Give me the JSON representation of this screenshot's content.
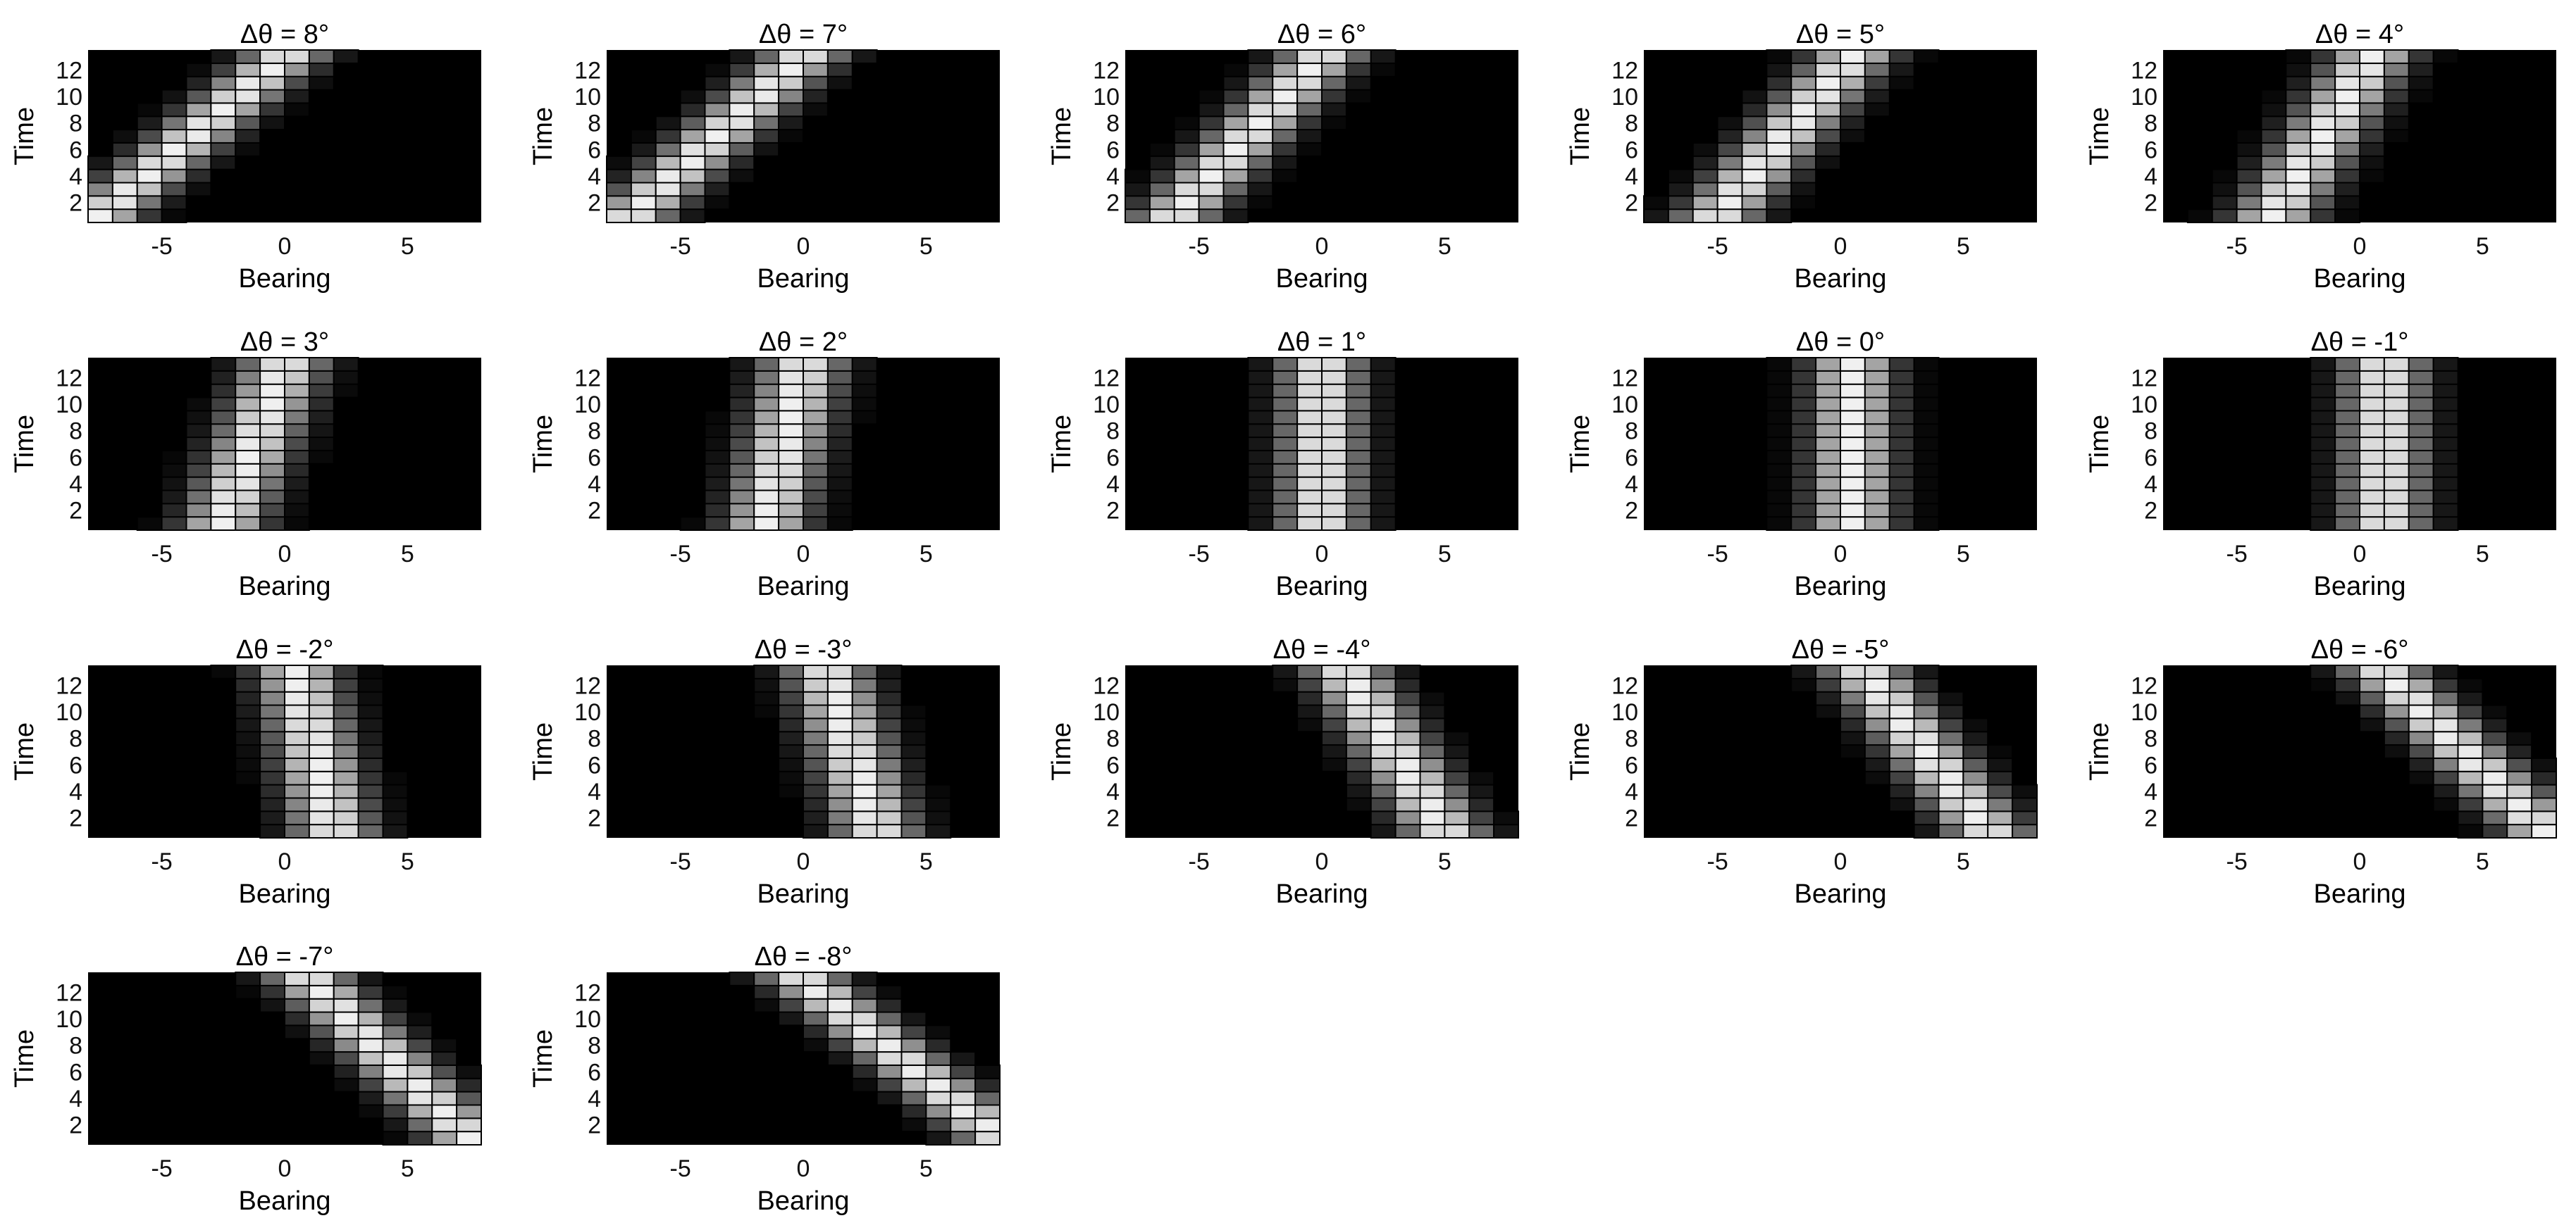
{
  "figure": {
    "background": "#ffffff",
    "colormap": "gray",
    "cell_edge_color": "#000000"
  },
  "chart_data": [
    {
      "type": "heatmap",
      "title": "Δθ = 8°",
      "delta_deg": 8,
      "xlabel": "Bearing",
      "ylabel": "Time",
      "xlim": [
        -8,
        8
      ],
      "ylim": [
        1,
        13
      ],
      "x_ticks": [
        "-5",
        "0",
        "5"
      ],
      "y_ticks": [
        "2",
        "4",
        "6",
        "8",
        "10",
        "12"
      ],
      "time_range": [
        1,
        13
      ],
      "peak_bearing_at_time": [
        [
          1,
          -7.5
        ],
        [
          13,
          0
        ]
      ]
    },
    {
      "type": "heatmap",
      "title": "Δθ = 7°",
      "delta_deg": 7,
      "xlabel": "Bearing",
      "ylabel": "Time",
      "xlim": [
        -8,
        8
      ],
      "ylim": [
        1,
        13
      ],
      "x_ticks": [
        "-5",
        "0",
        "5"
      ],
      "y_ticks": [
        "2",
        "4",
        "6",
        "8",
        "10",
        "12"
      ],
      "time_range": [
        1,
        13
      ],
      "peak_bearing_at_time": [
        [
          1,
          -7
        ],
        [
          13,
          0
        ]
      ]
    },
    {
      "type": "heatmap",
      "title": "Δθ = 6°",
      "delta_deg": 6,
      "xlabel": "Bearing",
      "ylabel": "Time",
      "xlim": [
        -8,
        8
      ],
      "ylim": [
        1,
        13
      ],
      "x_ticks": [
        "-5",
        "0",
        "5"
      ],
      "y_ticks": [
        "2",
        "4",
        "6",
        "8",
        "10",
        "12"
      ],
      "time_range": [
        1,
        13
      ],
      "peak_bearing_at_time": [
        [
          1,
          -6
        ],
        [
          13,
          0
        ]
      ]
    },
    {
      "type": "heatmap",
      "title": "Δθ = 5°",
      "delta_deg": 5,
      "xlabel": "Bearing",
      "ylabel": "Time",
      "xlim": [
        -8,
        8
      ],
      "ylim": [
        1,
        13
      ],
      "x_ticks": [
        "-5",
        "0",
        "5"
      ],
      "y_ticks": [
        "2",
        "4",
        "6",
        "8",
        "10",
        "12"
      ],
      "time_range": [
        1,
        13
      ],
      "peak_bearing_at_time": [
        [
          1,
          -5
        ],
        [
          13,
          0.5
        ]
      ]
    },
    {
      "type": "heatmap",
      "title": "Δθ = 4°",
      "delta_deg": 4,
      "xlabel": "Bearing",
      "ylabel": "Time",
      "xlim": [
        -8,
        8
      ],
      "ylim": [
        1,
        13
      ],
      "x_ticks": [
        "-5",
        "0",
        "5"
      ],
      "y_ticks": [
        "2",
        "4",
        "6",
        "8",
        "10",
        "12"
      ],
      "time_range": [
        1,
        13
      ],
      "peak_bearing_at_time": [
        [
          1,
          -3.5
        ],
        [
          13,
          0.5
        ]
      ]
    },
    {
      "type": "heatmap",
      "title": "Δθ = 3°",
      "delta_deg": 3,
      "xlabel": "Bearing",
      "ylabel": "Time",
      "xlim": [
        -8,
        8
      ],
      "ylim": [
        1,
        13
      ],
      "x_ticks": [
        "-5",
        "0",
        "5"
      ],
      "y_ticks": [
        "2",
        "4",
        "6",
        "8",
        "10",
        "12"
      ],
      "time_range": [
        1,
        13
      ],
      "peak_bearing_at_time": [
        [
          1,
          -2.5
        ],
        [
          13,
          0
        ]
      ]
    },
    {
      "type": "heatmap",
      "title": "Δθ = 2°",
      "delta_deg": 2,
      "xlabel": "Bearing",
      "ylabel": "Time",
      "xlim": [
        -8,
        8
      ],
      "ylim": [
        1,
        13
      ],
      "x_ticks": [
        "-5",
        "0",
        "5"
      ],
      "y_ticks": [
        "2",
        "4",
        "6",
        "8",
        "10",
        "12"
      ],
      "time_range": [
        1,
        13
      ],
      "peak_bearing_at_time": [
        [
          1,
          -1.5
        ],
        [
          13,
          0
        ]
      ]
    },
    {
      "type": "heatmap",
      "title": "Δθ = 1°",
      "delta_deg": 1,
      "xlabel": "Bearing",
      "ylabel": "Time",
      "xlim": [
        -8,
        8
      ],
      "ylim": [
        1,
        13
      ],
      "x_ticks": [
        "-5",
        "0",
        "5"
      ],
      "y_ticks": [
        "2",
        "4",
        "6",
        "8",
        "10",
        "12"
      ],
      "time_range": [
        1,
        13
      ],
      "peak_bearing_at_time": [
        [
          1,
          0
        ],
        [
          13,
          0
        ]
      ]
    },
    {
      "type": "heatmap",
      "title": "Δθ = 0°",
      "delta_deg": 0,
      "xlabel": "Bearing",
      "ylabel": "Time",
      "xlim": [
        -8,
        8
      ],
      "ylim": [
        1,
        13
      ],
      "x_ticks": [
        "-5",
        "0",
        "5"
      ],
      "y_ticks": [
        "2",
        "4",
        "6",
        "8",
        "10",
        "12"
      ],
      "time_range": [
        1,
        13
      ],
      "peak_bearing_at_time": [
        [
          1,
          0.5
        ],
        [
          13,
          0.5
        ]
      ]
    },
    {
      "type": "heatmap",
      "title": "Δθ = -1°",
      "delta_deg": -1,
      "xlabel": "Bearing",
      "ylabel": "Time",
      "xlim": [
        -8,
        8
      ],
      "ylim": [
        1,
        13
      ],
      "x_ticks": [
        "-5",
        "0",
        "5"
      ],
      "y_ticks": [
        "2",
        "4",
        "6",
        "8",
        "10",
        "12"
      ],
      "time_range": [
        1,
        13
      ],
      "peak_bearing_at_time": [
        [
          1,
          1
        ],
        [
          13,
          1
        ]
      ]
    },
    {
      "type": "heatmap",
      "title": "Δθ = -2°",
      "delta_deg": -2,
      "xlabel": "Bearing",
      "ylabel": "Time",
      "xlim": [
        -8,
        8
      ],
      "ylim": [
        1,
        13
      ],
      "x_ticks": [
        "-5",
        "0",
        "5"
      ],
      "y_ticks": [
        "2",
        "4",
        "6",
        "8",
        "10",
        "12"
      ],
      "time_range": [
        1,
        13
      ],
      "peak_bearing_at_time": [
        [
          1,
          2
        ],
        [
          13,
          0.5
        ]
      ]
    },
    {
      "type": "heatmap",
      "title": "Δθ = -3°",
      "delta_deg": -3,
      "xlabel": "Bearing",
      "ylabel": "Time",
      "xlim": [
        -8,
        8
      ],
      "ylim": [
        1,
        13
      ],
      "x_ticks": [
        "-5",
        "0",
        "5"
      ],
      "y_ticks": [
        "2",
        "4",
        "6",
        "8",
        "10",
        "12"
      ],
      "time_range": [
        1,
        13
      ],
      "peak_bearing_at_time": [
        [
          1,
          3
        ],
        [
          13,
          1
        ]
      ]
    },
    {
      "type": "heatmap",
      "title": "Δθ = -4°",
      "delta_deg": -4,
      "xlabel": "Bearing",
      "ylabel": "Time",
      "xlim": [
        -8,
        8
      ],
      "ylim": [
        1,
        13
      ],
      "x_ticks": [
        "-5",
        "0",
        "5"
      ],
      "y_ticks": [
        "2",
        "4",
        "6",
        "8",
        "10",
        "12"
      ],
      "time_range": [
        1,
        13
      ],
      "peak_bearing_at_time": [
        [
          1,
          5
        ],
        [
          13,
          1
        ]
      ]
    },
    {
      "type": "heatmap",
      "title": "Δθ = -5°",
      "delta_deg": -5,
      "xlabel": "Bearing",
      "ylabel": "Time",
      "xlim": [
        -8,
        8
      ],
      "ylim": [
        1,
        13
      ],
      "x_ticks": [
        "-5",
        "0",
        "5"
      ],
      "y_ticks": [
        "2",
        "4",
        "6",
        "8",
        "10",
        "12"
      ],
      "time_range": [
        1,
        13
      ],
      "peak_bearing_at_time": [
        [
          1,
          6
        ],
        [
          13,
          1
        ]
      ]
    },
    {
      "type": "heatmap",
      "title": "Δθ = -6°",
      "delta_deg": -6,
      "xlabel": "Bearing",
      "ylabel": "Time",
      "xlim": [
        -8,
        8
      ],
      "ylim": [
        1,
        13
      ],
      "x_ticks": [
        "-5",
        "0",
        "5"
      ],
      "y_ticks": [
        "2",
        "4",
        "6",
        "8",
        "10",
        "12"
      ],
      "time_range": [
        1,
        13
      ],
      "peak_bearing_at_time": [
        [
          1,
          7.5
        ],
        [
          13,
          1
        ]
      ]
    },
    {
      "type": "heatmap",
      "title": "Δθ = -7°",
      "delta_deg": -7,
      "xlabel": "Bearing",
      "ylabel": "Time",
      "xlim": [
        -8,
        8
      ],
      "ylim": [
        1,
        13
      ],
      "x_ticks": [
        "-5",
        "0",
        "5"
      ],
      "y_ticks": [
        "2",
        "4",
        "6",
        "8",
        "10",
        "12"
      ],
      "time_range": [
        1,
        13
      ],
      "peak_bearing_at_time": [
        [
          1,
          7.5
        ],
        [
          13,
          1
        ]
      ]
    },
    {
      "type": "heatmap",
      "title": "Δθ = -8°",
      "delta_deg": -8,
      "xlabel": "Bearing",
      "ylabel": "Time",
      "xlim": [
        -8,
        8
      ],
      "ylim": [
        1,
        13
      ],
      "x_ticks": [
        "-5",
        "0",
        "5"
      ],
      "y_ticks": [
        "2",
        "4",
        "6",
        "8",
        "10",
        "12"
      ],
      "time_range": [
        1,
        13
      ],
      "peak_bearing_at_time": [
        [
          1,
          8
        ],
        [
          13,
          0
        ]
      ]
    }
  ]
}
